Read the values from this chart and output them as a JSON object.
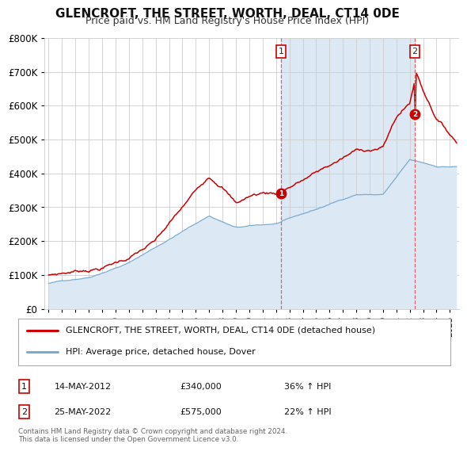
{
  "title": "GLENCROFT, THE STREET, WORTH, DEAL, CT14 0DE",
  "subtitle": "Price paid vs. HM Land Registry's House Price Index (HPI)",
  "ylim": [
    0,
    800000
  ],
  "yticks": [
    0,
    100000,
    200000,
    300000,
    400000,
    500000,
    600000,
    700000,
    800000
  ],
  "x_start_year": 1995,
  "x_end_year": 2025,
  "legend_line1": "GLENCROFT, THE STREET, WORTH, DEAL, CT14 0DE (detached house)",
  "legend_line2": "HPI: Average price, detached house, Dover",
  "sale1_date": "14-MAY-2012",
  "sale1_price": "£340,000",
  "sale1_hpi": "36% ↑ HPI",
  "sale1_year": 2012.37,
  "sale1_value": 340000,
  "sale2_date": "25-MAY-2022",
  "sale2_price": "£575,000",
  "sale2_hpi": "22% ↑ HPI",
  "sale2_year": 2022.37,
  "sale2_value": 575000,
  "property_color": "#cc0000",
  "hpi_fill_color": "#dce9f5",
  "hpi_line_color": "#7aaad0",
  "shade_color": "#dce9f5",
  "background_color": "#ffffff",
  "grid_color": "#cccccc",
  "vline_color": "#e06060",
  "copyright_text": "Contains HM Land Registry data © Crown copyright and database right 2024.\nThis data is licensed under the Open Government Licence v3.0."
}
